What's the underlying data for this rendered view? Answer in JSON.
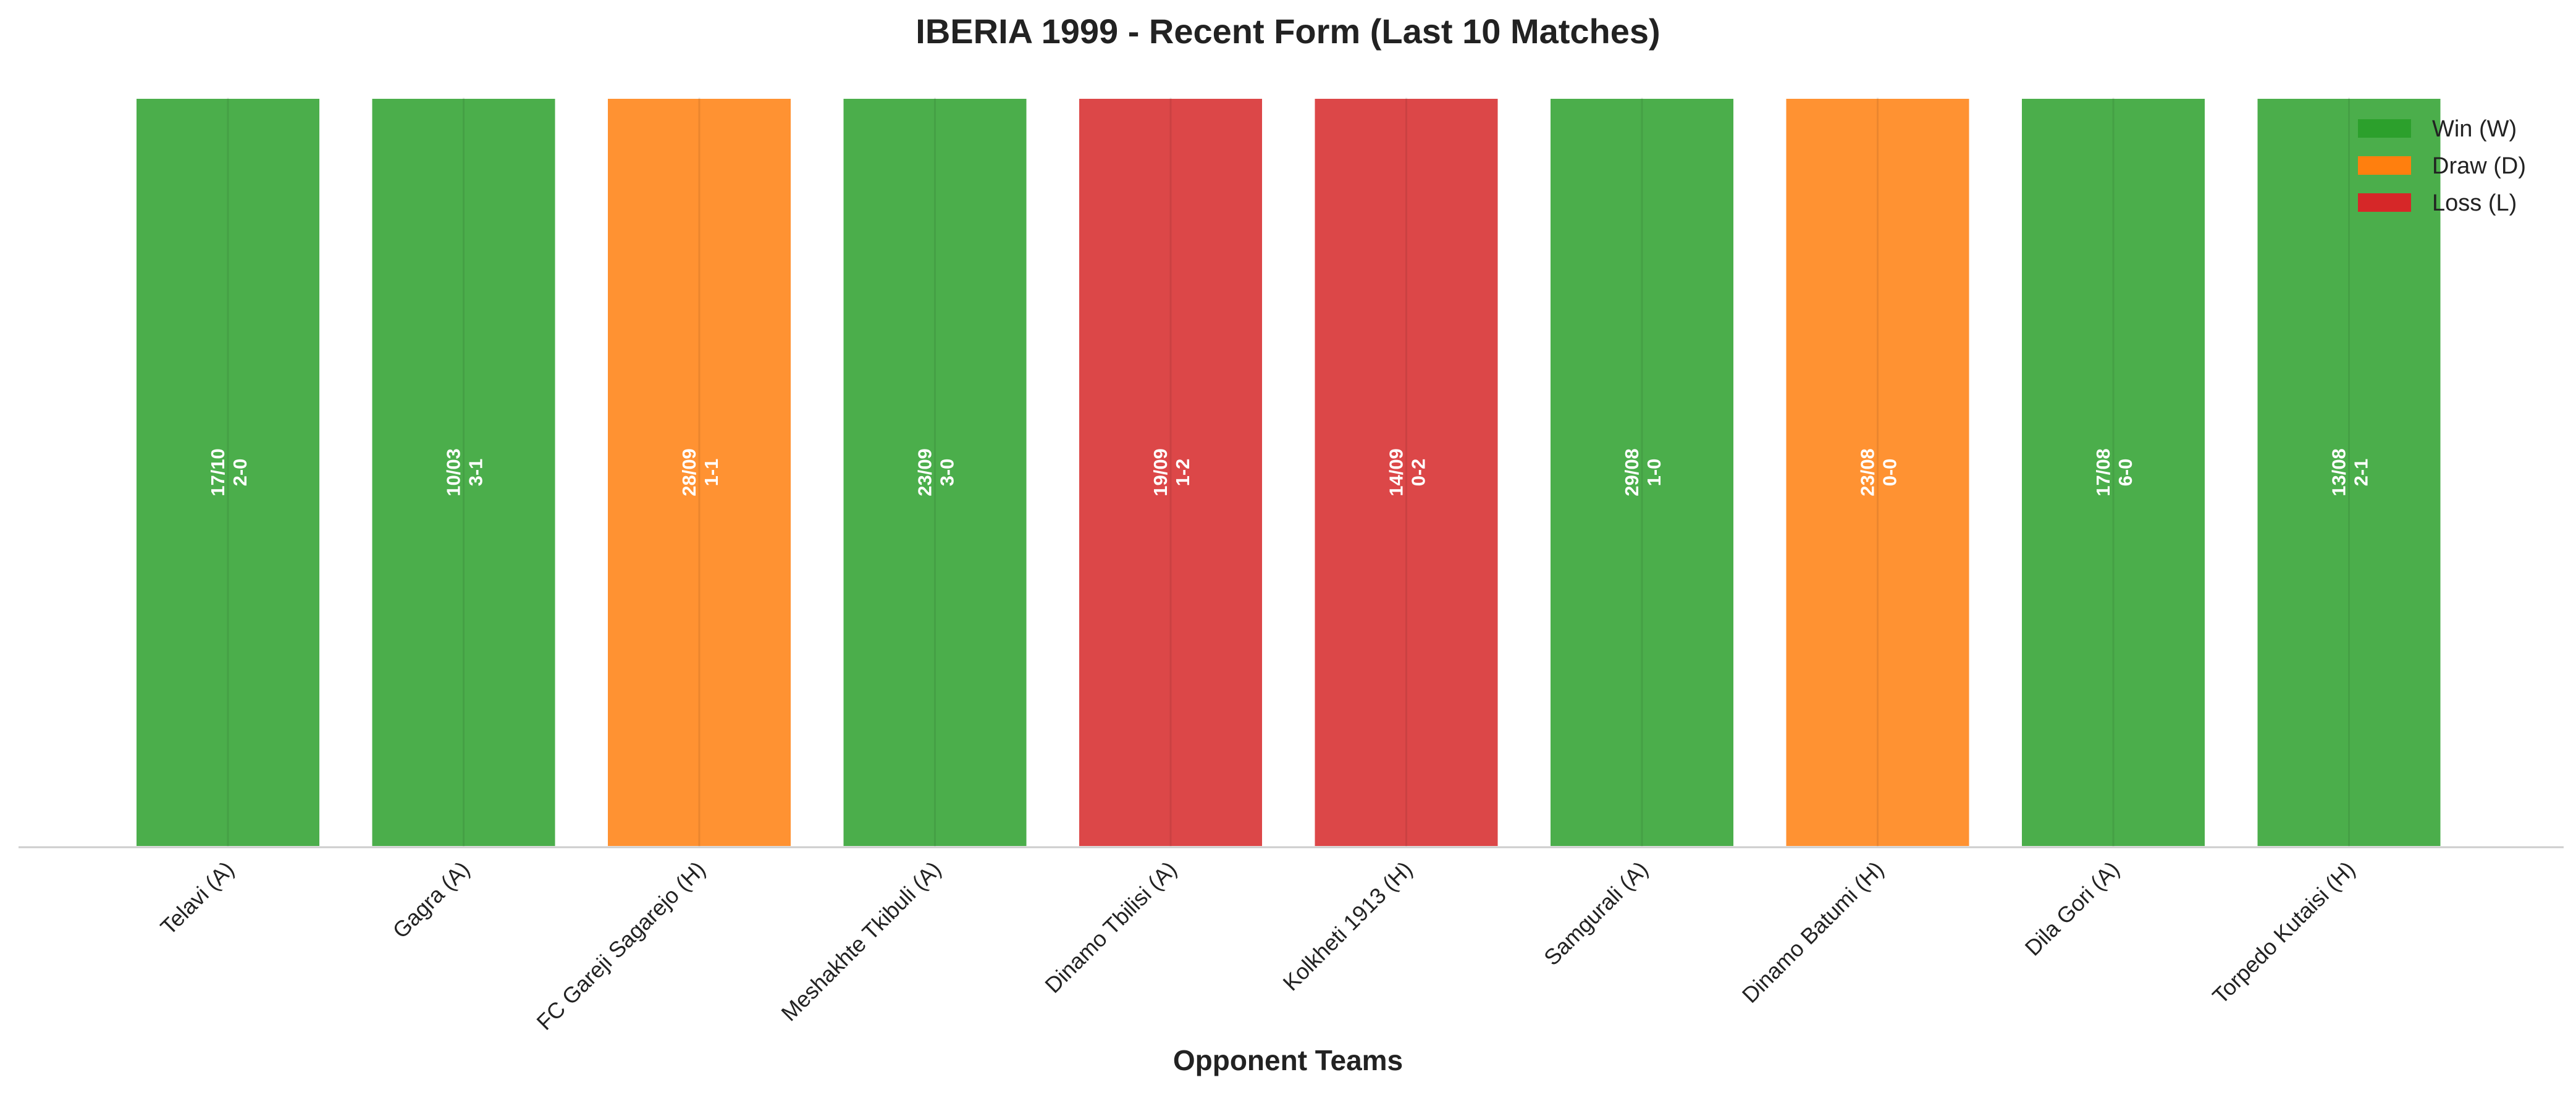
{
  "chart_data": {
    "type": "bar",
    "title": "IBERIA 1999 - Recent Form (Last 10 Matches)",
    "xlabel": "Opponent Teams",
    "ylabel": "",
    "ylim": [
      0,
      1
    ],
    "grid": false,
    "legend_position": "top-right",
    "categories": [
      "Telavi (A)",
      "Gagra (A)",
      "FC Gareji Sagarejo (H)",
      "Meshakhte Tkibuli (A)",
      "Dinamo Tbilisi (A)",
      "Kolkheti 1913 (H)",
      "Samgurali (A)",
      "Dinamo Batumi (H)",
      "Dila Gori (A)",
      "Torpedo Kutaisi (H)"
    ],
    "values": [
      1,
      1,
      1,
      1,
      1,
      1,
      1,
      1,
      1,
      1
    ],
    "results": [
      "W",
      "W",
      "D",
      "W",
      "L",
      "L",
      "W",
      "D",
      "W",
      "W"
    ],
    "dates": [
      "17/10",
      "10/03",
      "28/09",
      "23/09",
      "19/09",
      "14/09",
      "29/08",
      "23/08",
      "17/08",
      "13/08"
    ],
    "scores": [
      "2-0",
      "3-1",
      "1-1",
      "3-0",
      "1-2",
      "0-2",
      "1-0",
      "0-0",
      "6-0",
      "2-1"
    ],
    "colors": {
      "W": "#2ca02c",
      "D": "#ff7f0e",
      "L": "#d62728"
    },
    "legend": [
      {
        "key": "W",
        "label": "Win (W)"
      },
      {
        "key": "D",
        "label": "Draw (D)"
      },
      {
        "key": "L",
        "label": "Loss (L)"
      }
    ]
  }
}
